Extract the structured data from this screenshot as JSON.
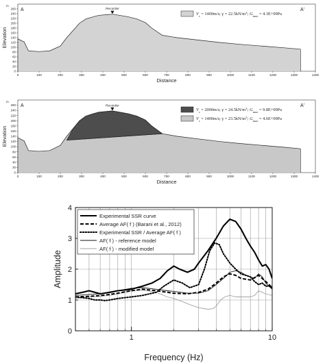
{
  "chart_data": [
    {
      "type": "area",
      "corner_left": "A",
      "corner_right": "A'",
      "xlabel": "Distance",
      "ylabel": "Elevation",
      "y_unit": "m",
      "xlim": [
        0,
        1400
      ],
      "ylim": [
        0,
        280
      ],
      "x_ticks": [
        0,
        100,
        200,
        300,
        400,
        500,
        600,
        700,
        800,
        900,
        1000,
        1100,
        1200,
        1300,
        1400
      ],
      "y_ticks": [
        0,
        20,
        40,
        60,
        80,
        100,
        120,
        140,
        160,
        180,
        200,
        220,
        240,
        260
      ],
      "recorder_label": "Recorder",
      "recorder_x": 445,
      "surface": {
        "x": [
          0,
          30,
          50,
          100,
          150,
          200,
          230,
          260,
          290,
          320,
          350,
          380,
          420,
          445,
          480,
          520,
          560,
          600,
          630,
          680,
          750,
          850,
          950,
          1050,
          1150,
          1250,
          1330
        ],
        "y": [
          135,
          122,
          85,
          82,
          85,
          105,
          140,
          170,
          200,
          218,
          226,
          233,
          236,
          238,
          233,
          227,
          218,
          203,
          180,
          150,
          140,
          130,
          120,
          112,
          105,
          98,
          92
        ]
      },
      "legend": [
        {
          "label_parts": [
            "V",
            "s",
            " = 1400m/s; γ = 22.5kN/m",
            "3",
            "; G",
            "max",
            " = 4.3E+09Pa"
          ],
          "color": "#d3d3d3"
        }
      ]
    },
    {
      "type": "area",
      "corner_left": "A",
      "corner_right": "A'",
      "xlabel": "Distance",
      "ylabel": "Elevation",
      "y_unit": "m",
      "xlim": [
        0,
        1400
      ],
      "ylim": [
        0,
        280
      ],
      "x_ticks": [
        0,
        100,
        200,
        300,
        400,
        500,
        600,
        700,
        800,
        900,
        1000,
        1100,
        1200,
        1300,
        1400
      ],
      "y_ticks": [
        0,
        20,
        40,
        60,
        80,
        100,
        120,
        140,
        160,
        180,
        200,
        220,
        240,
        260
      ],
      "recorder_label": "Recorder",
      "recorder_x": 445,
      "surface": {
        "x": [
          0,
          30,
          50,
          100,
          150,
          200,
          230,
          260,
          290,
          320,
          350,
          380,
          420,
          445,
          480,
          520,
          560,
          600,
          630,
          680,
          750,
          850,
          950,
          1050,
          1150,
          1250,
          1330
        ],
        "y": [
          135,
          122,
          85,
          82,
          85,
          105,
          140,
          170,
          200,
          218,
          226,
          233,
          236,
          238,
          233,
          227,
          218,
          203,
          180,
          150,
          140,
          130,
          120,
          112,
          105,
          98,
          92
        ]
      },
      "interface": {
        "x": [
          230,
          680
        ],
        "y": [
          125,
          150
        ]
      },
      "legend": [
        {
          "label_parts": [
            "V",
            "s",
            " = 2000m/s; γ = 24.5kN/m",
            "3",
            "; G",
            "max",
            " = 9.8E+09Pa"
          ],
          "color": "#4d4d4d"
        },
        {
          "label_parts": [
            "V",
            "s",
            " = 1400m/s; γ = 23.5kN/m",
            "3",
            "; G",
            "max",
            " = 4.6E+09Pa"
          ],
          "color": "#c8c8c8"
        }
      ]
    },
    {
      "type": "line",
      "xlabel": "Frequency (Hz)",
      "ylabel": "Amplitude",
      "x_scale": "log",
      "xlim": [
        0.4,
        10
      ],
      "ylim": [
        0,
        4
      ],
      "x_tick_labels": [
        "1",
        "10"
      ],
      "y_ticks": [
        0,
        1,
        2,
        3,
        4
      ],
      "grid": true,
      "legend_position": "top-left",
      "series": [
        {
          "name": "Experimental SSR curve",
          "style": "solid-thick",
          "x": [
            0.4,
            0.45,
            0.5,
            0.55,
            0.6,
            0.7,
            0.8,
            1.0,
            1.2,
            1.4,
            1.6,
            1.8,
            2.0,
            2.2,
            2.5,
            2.8,
            3.0,
            3.5,
            4.0,
            4.5,
            5.0,
            5.5,
            6.0,
            6.5,
            7.0,
            7.5,
            8.0,
            8.5,
            9.0,
            9.5,
            10.0
          ],
          "y": [
            1.2,
            1.25,
            1.3,
            1.25,
            1.2,
            1.25,
            1.3,
            1.35,
            1.45,
            1.55,
            1.7,
            1.95,
            2.1,
            2.0,
            1.9,
            2.0,
            2.2,
            2.6,
            3.0,
            3.4,
            3.62,
            3.55,
            3.3,
            3.0,
            2.75,
            2.55,
            2.3,
            2.1,
            2.15,
            2.0,
            1.7
          ]
        },
        {
          "name": "Average AF( f ) (Barani et al., 2012)",
          "style": "dashed-thick",
          "x": [
            0.4,
            0.5,
            0.6,
            0.7,
            0.8,
            1.0,
            1.2,
            1.5,
            1.8,
            2.0,
            2.5,
            3.0,
            3.5,
            4.0,
            4.5,
            5.0,
            5.5,
            6.0,
            7.0,
            8.0,
            9.0,
            10.0
          ],
          "y": [
            1.1,
            1.12,
            1.14,
            1.18,
            1.22,
            1.3,
            1.35,
            1.3,
            1.25,
            1.22,
            1.2,
            1.25,
            1.35,
            1.55,
            1.75,
            1.85,
            1.8,
            1.7,
            1.65,
            1.8,
            1.6,
            1.4
          ]
        },
        {
          "name": "Experimental SSR / Average AF( f )",
          "style": "dotted-thick",
          "x": [
            0.4,
            0.5,
            0.55,
            0.6,
            0.65,
            0.7,
            0.8,
            1.0,
            1.2,
            1.5,
            1.7,
            2.0,
            2.3,
            2.6,
            3.0,
            3.3,
            3.6,
            3.9,
            4.2,
            4.5,
            5.0,
            5.5,
            6.0,
            6.5,
            7.0,
            7.5,
            8.0,
            8.5,
            9.0,
            9.5,
            10.0
          ],
          "y": [
            1.1,
            1.05,
            1.0,
            1.0,
            0.98,
            1.0,
            1.05,
            1.1,
            1.15,
            1.25,
            1.45,
            1.65,
            1.55,
            1.4,
            1.5,
            2.0,
            2.6,
            2.85,
            2.8,
            2.5,
            2.2,
            2.0,
            1.85,
            1.8,
            1.75,
            1.6,
            1.5,
            1.55,
            1.45,
            1.45,
            1.4
          ]
        },
        {
          "name": "AF( f ) - reference model",
          "style": "solid-thin",
          "x": [
            0.4,
            0.5,
            0.6,
            0.7,
            0.8,
            1.0,
            1.2,
            1.5,
            1.8,
            2.0,
            2.5,
            3.0,
            3.5,
            4.0,
            4.5,
            5.0,
            5.5,
            6.0,
            6.5,
            7.0,
            7.5,
            8.0,
            8.5,
            9.0,
            10.0
          ],
          "y": [
            1.15,
            1.18,
            1.2,
            1.25,
            1.3,
            1.38,
            1.4,
            1.35,
            1.3,
            1.28,
            1.22,
            1.22,
            1.3,
            1.5,
            1.7,
            1.9,
            1.95,
            1.9,
            1.8,
            1.75,
            1.7,
            1.85,
            1.75,
            1.55,
            1.35
          ]
        },
        {
          "name": "AF( f ) - modified model",
          "style": "solid-grey",
          "x": [
            0.4,
            0.5,
            0.6,
            0.7,
            0.8,
            1.0,
            1.2,
            1.5,
            1.8,
            2.0,
            2.3,
            2.6,
            3.0,
            3.5,
            3.8,
            4.0,
            4.3,
            4.6,
            5.0,
            5.5,
            6.0,
            7.0,
            7.5,
            8.0,
            8.5,
            9.0,
            10.0
          ],
          "y": [
            1.05,
            1.1,
            1.12,
            1.15,
            1.2,
            1.3,
            1.32,
            1.25,
            1.1,
            1.05,
            0.95,
            0.85,
            0.75,
            0.7,
            0.72,
            0.8,
            1.0,
            1.1,
            1.15,
            1.1,
            1.1,
            1.1,
            1.15,
            1.3,
            1.25,
            1.2,
            1.15
          ]
        }
      ]
    }
  ]
}
